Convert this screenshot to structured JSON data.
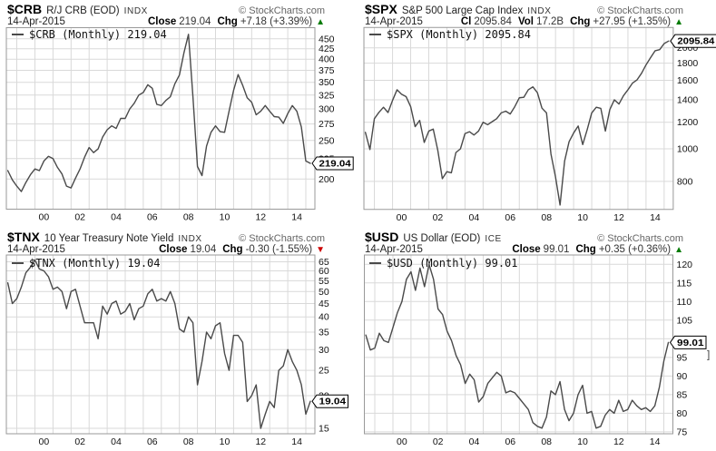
{
  "copyright": "© StockCharts.com",
  "x_tick_labels": [
    "00",
    "02",
    "04",
    "06",
    "08",
    "10",
    "12",
    "14"
  ],
  "colors": {
    "line": "#4a4a4a",
    "grid": "#d9d9d9",
    "border": "#999999",
    "up": "#007a00",
    "down": "#cc0000",
    "axis_text": "#111111",
    "tag_bg": "#ffffff",
    "tag_border": "#000000"
  },
  "panels": [
    {
      "symbol": "$CRB",
      "name": "R/J CRB (EOD)",
      "exchange": "INDX",
      "date": "14-Apr-2015",
      "quote": [
        {
          "label": "Close",
          "value": "219.04"
        },
        {
          "label": "Chg",
          "value": "+7.18 (+3.39%)"
        }
      ],
      "arrow": "▲",
      "direction": "up",
      "legend": "$CRB (Monthly) 219.04",
      "tag": "219.04",
      "bracket": false,
      "bracket_dy": 0
    },
    {
      "symbol": "$SPX",
      "name": "S&P 500 Large Cap Index",
      "exchange": "INDX",
      "date": "14-Apr-2015",
      "quote": [
        {
          "label": "Cl",
          "value": "2095.84"
        },
        {
          "label": "Vol",
          "value": "17.2B"
        },
        {
          "label": "Chg",
          "value": "+27.95 (+1.35%)"
        }
      ],
      "arrow": "▲",
      "direction": "up",
      "legend": "$SPX (Monthly) 2095.84",
      "tag": "2095.84",
      "bracket": true,
      "bracket_dy": 0
    },
    {
      "symbol": "$TNX",
      "name": "10 Year Treasury Note Yield",
      "exchange": "INDX",
      "date": "14-Apr-2015",
      "quote": [
        {
          "label": "Close",
          "value": "19.04"
        },
        {
          "label": "Chg",
          "value": "-0.30 (-1.55%)"
        }
      ],
      "arrow": "▼",
      "direction": "down",
      "legend": "$TNX (Monthly) 19.04",
      "tag": "19.04",
      "bracket": false,
      "bracket_dy": 0
    },
    {
      "symbol": "$USD",
      "name": "US Dollar (EOD)",
      "exchange": "ICE",
      "date": "14-Apr-2015",
      "quote": [
        {
          "label": "Close",
          "value": "99.01"
        },
        {
          "label": "Chg",
          "value": "+0.35 (+0.36%)"
        }
      ],
      "arrow": "▲",
      "direction": "up",
      "legend": "$USD (Monthly) 99.01",
      "tag": "99.01",
      "bracket": true,
      "bracket_dy": 13
    }
  ],
  "chart_data": [
    {
      "type": "line",
      "symbol": "$CRB",
      "series_label": "$CRB (Monthly)",
      "log_scale": true,
      "xlim": [
        1998.42,
        2015.5
      ],
      "ylim": [
        168,
        480
      ],
      "yticks": [
        200,
        225,
        250,
        275,
        300,
        325,
        350,
        375,
        400,
        425,
        450
      ],
      "x_tick_years": [
        2000,
        2002,
        2004,
        2006,
        2008,
        2010,
        2012,
        2014
      ],
      "x_start": 1998.5,
      "x_step": 0.25,
      "values": [
        210,
        199,
        192,
        186,
        196,
        205,
        212,
        210,
        222,
        228,
        225,
        214,
        206,
        192,
        190,
        201,
        212,
        227,
        240,
        233,
        238,
        255,
        266,
        272,
        268,
        284,
        284,
        300,
        310,
        325,
        330,
        345,
        338,
        308,
        306,
        315,
        322,
        347,
        365,
        415,
        462,
        322,
        215,
        204,
        242,
        262,
        272,
        263,
        262,
        296,
        334,
        366,
        344,
        320,
        312,
        290,
        296,
        306,
        296,
        287,
        286,
        276,
        292,
        306,
        296,
        270,
        222,
        219.04
      ],
      "last": 219.04
    },
    {
      "type": "line",
      "symbol": "$SPX",
      "series_label": "$SPX (Monthly)",
      "log_scale": true,
      "xlim": [
        1998.42,
        2015.5
      ],
      "ylim": [
        660,
        2300
      ],
      "yticks": [
        800,
        1000,
        1200,
        1400,
        1600,
        1800,
        2000
      ],
      "x_tick_years": [
        2000,
        2002,
        2004,
        2006,
        2008,
        2010,
        2012,
        2014
      ],
      "x_start": 1998.5,
      "x_step": 0.25,
      "values": [
        1120,
        995,
        1230,
        1285,
        1330,
        1283,
        1395,
        1500,
        1455,
        1430,
        1335,
        1165,
        1215,
        1045,
        1130,
        1145,
        990,
        815,
        855,
        848,
        975,
        1000,
        1110,
        1125,
        1100,
        1130,
        1200,
        1180,
        1205,
        1230,
        1280,
        1295,
        1270,
        1335,
        1420,
        1425,
        1500,
        1530,
        1470,
        1322,
        1280,
        965,
        825,
        680,
        920,
        1050,
        1115,
        1170,
        1030,
        1140,
        1280,
        1330,
        1320,
        1130,
        1310,
        1400,
        1360,
        1440,
        1500,
        1570,
        1605,
        1680,
        1780,
        1870,
        1960,
        1975,
        2060,
        2095.84
      ],
      "last": 2095.84
    },
    {
      "type": "line",
      "symbol": "$TNX",
      "series_label": "$TNX (Monthly)",
      "log_scale": true,
      "xlim": [
        1998.42,
        2015.5
      ],
      "ylim": [
        14.3,
        69
      ],
      "yticks": [
        15,
        20,
        25,
        30,
        35,
        40,
        45,
        50,
        55,
        60,
        65
      ],
      "x_tick_years": [
        2000,
        2002,
        2004,
        2006,
        2008,
        2010,
        2012,
        2014
      ],
      "x_start": 1998.5,
      "x_step": 0.25,
      "values": [
        54,
        45,
        47,
        52,
        59,
        62,
        66,
        61,
        60,
        57,
        51,
        52,
        50,
        43,
        50,
        51,
        44,
        38,
        38,
        38,
        33,
        44,
        41,
        45,
        46,
        41,
        42,
        45,
        39,
        43,
        44,
        49,
        51,
        46,
        47,
        46,
        50,
        45,
        36,
        35,
        40,
        38,
        22,
        27,
        35,
        33,
        37,
        38,
        29,
        25,
        34,
        34,
        32,
        19,
        20,
        22,
        15,
        17,
        19,
        18,
        25,
        26,
        30,
        27,
        25,
        22,
        17,
        19.04
      ],
      "last": 19.04
    },
    {
      "type": "line",
      "symbol": "$USD",
      "series_label": "$USD (Monthly)",
      "log_scale": false,
      "xlim": [
        1998.42,
        2015.5
      ],
      "ylim": [
        74.5,
        122.5
      ],
      "yticks": [
        75,
        80,
        85,
        90,
        95,
        100,
        105,
        110,
        115,
        120
      ],
      "x_tick_years": [
        2000,
        2002,
        2004,
        2006,
        2008,
        2010,
        2012,
        2014
      ],
      "x_start": 1998.5,
      "x_step": 0.25,
      "values": [
        101,
        97,
        97.5,
        101.5,
        99.5,
        99,
        103,
        107,
        110,
        116,
        118,
        113,
        119,
        114,
        120,
        116,
        108,
        106.5,
        102,
        99.5,
        95.5,
        93,
        88,
        90.5,
        89,
        83,
        84.5,
        88,
        89.5,
        91,
        90,
        85.5,
        86,
        85.5,
        84,
        82.5,
        81,
        77.5,
        76.5,
        76,
        79,
        86,
        85,
        88.5,
        81,
        78,
        80,
        85,
        87.5,
        80,
        80.5,
        76,
        76.5,
        79.5,
        81,
        80,
        83.5,
        80.5,
        81,
        83.5,
        82,
        81,
        81.5,
        80.5,
        82,
        87,
        94,
        99.01
      ],
      "last": 99.01
    }
  ]
}
